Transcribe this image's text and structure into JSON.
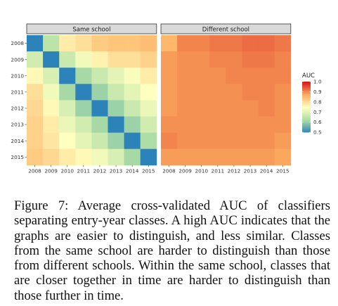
{
  "caption": {
    "label": "Figure 7:",
    "text": "Average cross-validated AUC of classifiers separating entry-year classes. A high AUC indicates that the graphs are easier to distinguish, and less similar. Classes from the same school are harder to distinguish than those from different schools. Within the same school, classes that are closer together in time are harder to distinguish than those further in time."
  },
  "chart_data": {
    "type": "heatmap",
    "facets": [
      "Same school",
      "Different school"
    ],
    "x": [
      "2008",
      "2009",
      "2010",
      "2011",
      "2012",
      "2013",
      "2014",
      "2015"
    ],
    "y": [
      "2008",
      "2009",
      "2010",
      "2011",
      "2012",
      "2013",
      "2014",
      "2015"
    ],
    "values": {
      "Same school": [
        [
          0.5,
          0.65,
          0.78,
          0.8,
          0.83,
          0.84,
          0.84,
          0.85
        ],
        [
          0.68,
          0.5,
          0.67,
          0.73,
          0.77,
          0.8,
          0.8,
          0.82
        ],
        [
          0.76,
          0.69,
          0.5,
          0.62,
          0.67,
          0.71,
          0.74,
          0.78
        ],
        [
          0.8,
          0.73,
          0.62,
          0.5,
          0.61,
          0.67,
          0.71,
          0.75
        ],
        [
          0.81,
          0.76,
          0.69,
          0.61,
          0.5,
          0.61,
          0.67,
          0.72
        ],
        [
          0.82,
          0.78,
          0.72,
          0.68,
          0.62,
          0.5,
          0.61,
          0.68
        ],
        [
          0.82,
          0.79,
          0.75,
          0.71,
          0.67,
          0.61,
          0.5,
          0.63
        ],
        [
          0.83,
          0.81,
          0.78,
          0.76,
          0.73,
          0.69,
          0.62,
          0.5
        ]
      ],
      "Different school": [
        [
          0.86,
          0.91,
          0.91,
          0.92,
          0.92,
          0.93,
          0.93,
          0.92
        ],
        [
          0.89,
          0.9,
          0.9,
          0.91,
          0.91,
          0.92,
          0.92,
          0.91
        ],
        [
          0.89,
          0.9,
          0.9,
          0.9,
          0.91,
          0.91,
          0.91,
          0.91
        ],
        [
          0.89,
          0.9,
          0.9,
          0.9,
          0.9,
          0.91,
          0.91,
          0.9
        ],
        [
          0.89,
          0.9,
          0.9,
          0.9,
          0.9,
          0.9,
          0.91,
          0.9
        ],
        [
          0.9,
          0.9,
          0.9,
          0.9,
          0.9,
          0.9,
          0.9,
          0.9
        ],
        [
          0.91,
          0.9,
          0.9,
          0.9,
          0.9,
          0.9,
          0.9,
          0.89
        ],
        [
          0.89,
          0.89,
          0.89,
          0.89,
          0.89,
          0.89,
          0.89,
          0.88
        ]
      ]
    },
    "legend": {
      "title": "AUC",
      "ticks": [
        "1.0",
        "0.9",
        "0.8",
        "0.7",
        "0.6",
        "0.5"
      ],
      "tick_values": [
        1.0,
        0.9,
        0.8,
        0.7,
        0.6,
        0.5
      ],
      "range": [
        0.5,
        1.0
      ],
      "position": "right"
    },
    "color_scale": [
      "#2b83ba",
      "#abdda4",
      "#ffffbf",
      "#fdae61",
      "#d7191c"
    ],
    "strip_color": "#d9d9d9",
    "grid": false
  }
}
